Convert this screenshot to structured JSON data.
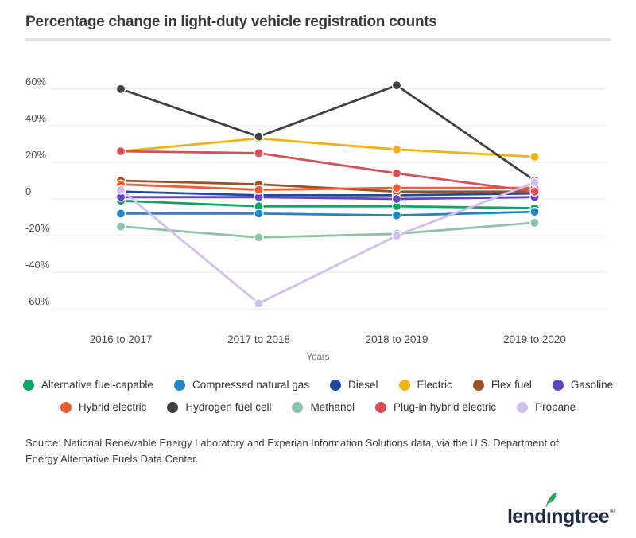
{
  "title": "Percentage change in light-duty vehicle registration counts",
  "chart_data": {
    "type": "line",
    "title": "Percentage change in light-duty vehicle registration counts",
    "categories": [
      "2016 to 2017",
      "2017 to 2018",
      "2018 to 2019",
      "2019 to 2020"
    ],
    "xlabel": "Years",
    "ylabel": "",
    "ylim": [
      -65,
      65
    ],
    "yticks": [
      60,
      40,
      20,
      0,
      -20,
      -40,
      -60
    ],
    "ytick_labels": [
      "60%",
      "40%",
      "20%",
      "0",
      "-20%",
      "-40%",
      "-60%"
    ],
    "grid": "horizontal",
    "legend_position": "bottom",
    "series": [
      {
        "name": "Alternative fuel-capable",
        "slug": "alternative-fuel-capable",
        "color": "#10a567",
        "values": [
          -1,
          -4,
          -4,
          -5
        ]
      },
      {
        "name": "Compressed natural gas",
        "slug": "compressed-natural-gas",
        "color": "#1e87c4",
        "values": [
          -8,
          -8,
          -9,
          -7
        ]
      },
      {
        "name": "Diesel",
        "slug": "diesel",
        "color": "#1c4ba5",
        "values": [
          4,
          2,
          2,
          3
        ]
      },
      {
        "name": "Electric",
        "slug": "electric",
        "color": "#f2b216",
        "values": [
          26,
          33,
          27,
          23
        ]
      },
      {
        "name": "Flex fuel",
        "slug": "flex-fuel",
        "color": "#9c5026",
        "values": [
          10,
          8,
          4,
          4
        ]
      },
      {
        "name": "Gasoline",
        "slug": "gasoline",
        "color": "#6445c8",
        "values": [
          1,
          1,
          0,
          1
        ]
      },
      {
        "name": "Hybrid electric",
        "slug": "hybrid-electric",
        "color": "#f15c34",
        "values": [
          8,
          5,
          6,
          6
        ]
      },
      {
        "name": "Hydrogen fuel cell",
        "slug": "hydrogen-fuel-cell",
        "color": "#404042",
        "values": [
          60,
          34,
          62,
          10
        ]
      },
      {
        "name": "Methanol",
        "slug": "methanol",
        "color": "#8fc3a8",
        "values": [
          -15,
          -21,
          -19,
          -13
        ]
      },
      {
        "name": "Plug-in hybrid electric",
        "slug": "plug-in-hybrid-electric",
        "color": "#d6505a",
        "values": [
          26,
          25,
          14,
          4
        ]
      },
      {
        "name": "Propane",
        "slug": "propane",
        "color": "#d2bfef",
        "values": [
          5,
          -57,
          -20,
          9
        ]
      }
    ],
    "legend_rows": [
      6,
      5
    ]
  },
  "source": "Source: National Renewable Energy Laboratory and Experian Information Solutions data, via the U.S. Department of Energy Alternative Fuels Data Center.",
  "logo": {
    "text": "lendingtree",
    "display_text": "lendıngtree",
    "registered_mark": "®",
    "text_color": "#1f2c49",
    "leaf_color": "#26a65b"
  },
  "colors": {
    "gridline": "#e8e8e8",
    "axis_label": "#4f4f4f",
    "divider": "#e3e3e3"
  }
}
